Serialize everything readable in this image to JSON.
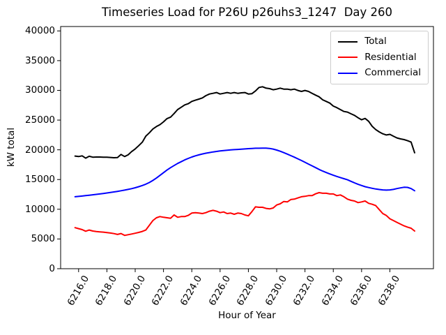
{
  "chart_data": {
    "type": "line",
    "title": "Timeseries Load for P26U p26uhs3_1247  Day 260",
    "xlabel": "Hour of Year",
    "ylabel": "kW total",
    "grid": false,
    "legend_position": "upper right",
    "x_tick_rotation_deg": 60,
    "xlim": [
      6214.73,
      6241.08
    ],
    "ylim": [
      0,
      40740
    ],
    "x_ticks": [
      "6216.0",
      "6218.0",
      "6220.0",
      "6222.0",
      "6224.0",
      "6226.0",
      "6228.0",
      "6230.0",
      "6232.0",
      "6234.0",
      "6236.0",
      "6238.0"
    ],
    "y_ticks": [
      0,
      5000,
      10000,
      15000,
      20000,
      25000,
      30000,
      35000,
      40000
    ],
    "x_start": 6215.75,
    "x_step": 0.25,
    "series": [
      {
        "name": "Total",
        "color": "#000000",
        "values": [
          18950,
          18870,
          18990,
          18600,
          18910,
          18760,
          18790,
          18790,
          18750,
          18750,
          18710,
          18670,
          18700,
          19220,
          18870,
          19150,
          19700,
          20150,
          20700,
          21290,
          22300,
          22860,
          23500,
          23920,
          24230,
          24700,
          25250,
          25500,
          26100,
          26770,
          27160,
          27550,
          27750,
          28140,
          28340,
          28530,
          28730,
          29120,
          29390,
          29510,
          29630,
          29390,
          29510,
          29630,
          29510,
          29630,
          29510,
          29590,
          29630,
          29390,
          29450,
          29900,
          30490,
          30610,
          30370,
          30290,
          30100,
          30210,
          30370,
          30210,
          30210,
          30100,
          30210,
          29980,
          29820,
          29980,
          29820,
          29510,
          29200,
          28920,
          28410,
          28140,
          27860,
          27350,
          27100,
          26770,
          26450,
          26350,
          26060,
          25790,
          25400,
          25050,
          25280,
          24800,
          23950,
          23400,
          23010,
          22700,
          22500,
          22600,
          22300,
          22000,
          21840,
          21720,
          21530,
          21300,
          19500
        ]
      },
      {
        "name": "Residential",
        "color": "#ff0000",
        "values": [
          6900,
          6740,
          6580,
          6300,
          6500,
          6340,
          6250,
          6200,
          6150,
          6070,
          6000,
          5900,
          5760,
          5920,
          5600,
          5720,
          5840,
          5960,
          6110,
          6270,
          6500,
          7300,
          8100,
          8570,
          8770,
          8650,
          8570,
          8490,
          9040,
          8650,
          8770,
          8770,
          8970,
          9360,
          9430,
          9360,
          9280,
          9430,
          9670,
          9820,
          9670,
          9430,
          9550,
          9280,
          9360,
          9160,
          9360,
          9280,
          9040,
          8900,
          9600,
          10400,
          10330,
          10330,
          10140,
          10060,
          10220,
          10720,
          10920,
          11310,
          11230,
          11630,
          11700,
          11900,
          12100,
          12180,
          12290,
          12290,
          12600,
          12800,
          12690,
          12690,
          12570,
          12570,
          12290,
          12410,
          12100,
          11710,
          11510,
          11390,
          11120,
          11230,
          11390,
          11000,
          10840,
          10610,
          9940,
          9280,
          8950,
          8400,
          8100,
          7790,
          7500,
          7210,
          7000,
          6810,
          6340
        ]
      },
      {
        "name": "Commercial",
        "color": "#0000ff",
        "values": [
          12100,
          12160,
          12220,
          12290,
          12360,
          12430,
          12500,
          12580,
          12660,
          12740,
          12830,
          12920,
          13010,
          13110,
          13220,
          13340,
          13470,
          13620,
          13790,
          13990,
          14220,
          14500,
          14850,
          15250,
          15700,
          16150,
          16600,
          17000,
          17350,
          17700,
          18000,
          18300,
          18550,
          18780,
          18980,
          19150,
          19300,
          19430,
          19540,
          19640,
          19730,
          19810,
          19880,
          19940,
          19990,
          20030,
          20070,
          20110,
          20150,
          20190,
          20230,
          20260,
          20270,
          20280,
          20280,
          20230,
          20120,
          19960,
          19760,
          19530,
          19280,
          19020,
          18760,
          18480,
          18200,
          17900,
          17600,
          17300,
          17000,
          16700,
          16430,
          16180,
          15940,
          15720,
          15520,
          15330,
          15150,
          14960,
          14700,
          14440,
          14200,
          13990,
          13800,
          13650,
          13520,
          13410,
          13320,
          13260,
          13220,
          13250,
          13340,
          13480,
          13600,
          13700,
          13680,
          13480,
          13120
        ]
      }
    ]
  }
}
